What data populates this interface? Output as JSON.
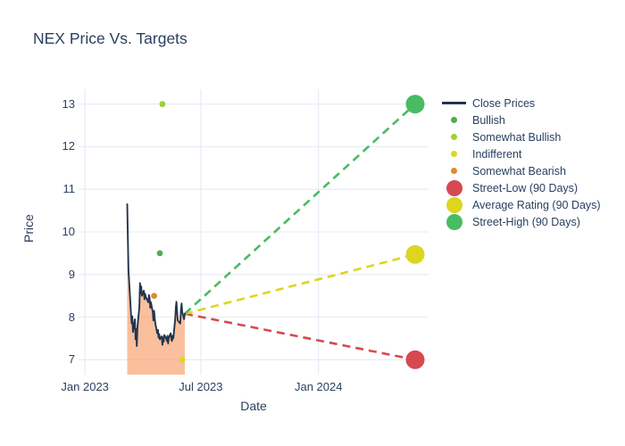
{
  "colors": {
    "text": "#2a3f5f",
    "grid": "#e9edf5",
    "close_line": "#24354d",
    "fill": "rgba(247,149,92,0.6)",
    "bullish": "#4caf50",
    "somewhat_bullish": "#a2cd3a",
    "indifferent": "#ddd621",
    "somewhat_bearish": "#e08a2e",
    "street_low": "#d6494f",
    "average": "#ddd61f",
    "street_high": "#49bb63"
  },
  "chart_data": {
    "type": "line",
    "title": "NEX Price Vs. Targets",
    "xlabel": "Date",
    "ylabel": "Price",
    "grid": true,
    "legend_position": "right",
    "x_range": [
      "2022-12-22",
      "2024-06-21"
    ],
    "y_range": [
      6.65,
      13.35
    ],
    "x_ticks": [
      {
        "label": "Jan 2023",
        "date": "2023-01-01"
      },
      {
        "label": "Jul 2023",
        "date": "2023-07-01"
      },
      {
        "label": "Jan 2024",
        "date": "2024-01-01"
      }
    ],
    "y_ticks": [
      7,
      8,
      9,
      10,
      11,
      12,
      13
    ],
    "series": {
      "close_prices": {
        "name": "Close Prices",
        "dates": [
          "2023-03-08",
          "2023-03-09",
          "2023-03-10",
          "2023-03-13",
          "2023-03-14",
          "2023-03-15",
          "2023-03-16",
          "2023-03-17",
          "2023-03-20",
          "2023-03-21",
          "2023-03-22",
          "2023-03-23",
          "2023-03-24",
          "2023-03-27",
          "2023-03-28",
          "2023-03-29",
          "2023-03-30",
          "2023-03-31",
          "2023-04-03",
          "2023-04-04",
          "2023-04-05",
          "2023-04-06",
          "2023-04-10",
          "2023-04-11",
          "2023-04-12",
          "2023-04-13",
          "2023-04-14",
          "2023-04-17",
          "2023-04-18",
          "2023-04-19",
          "2023-04-20",
          "2023-04-21",
          "2023-04-24",
          "2023-04-25",
          "2023-04-26",
          "2023-04-27",
          "2023-04-28",
          "2023-05-01",
          "2023-05-02",
          "2023-05-03",
          "2023-05-04",
          "2023-05-05",
          "2023-05-08",
          "2023-05-09",
          "2023-05-10",
          "2023-05-11",
          "2023-05-12",
          "2023-05-15",
          "2023-05-16",
          "2023-05-17",
          "2023-05-18",
          "2023-05-19",
          "2023-05-22",
          "2023-05-23",
          "2023-05-24",
          "2023-05-25",
          "2023-05-26",
          "2023-05-30",
          "2023-05-31",
          "2023-06-01",
          "2023-06-02",
          "2023-06-05",
          "2023-06-06"
        ],
        "prices": [
          10.65,
          9.85,
          9.1,
          8.35,
          8.05,
          7.85,
          8.02,
          7.65,
          7.95,
          7.48,
          7.72,
          7.32,
          7.75,
          8.25,
          8.8,
          8.55,
          8.72,
          8.5,
          8.62,
          8.42,
          8.55,
          8.48,
          8.35,
          8.52,
          8.46,
          8.22,
          8.35,
          8.12,
          7.92,
          8.15,
          7.98,
          7.85,
          7.62,
          7.7,
          7.52,
          7.6,
          7.48,
          7.55,
          7.35,
          7.52,
          7.42,
          7.58,
          7.5,
          7.44,
          7.56,
          7.38,
          7.52,
          7.62,
          7.48,
          7.44,
          7.56,
          7.5,
          7.95,
          8.22,
          8.36,
          8.1,
          7.92,
          7.85,
          8.18,
          8.32,
          8.12,
          7.95,
          8.08
        ]
      },
      "ratings": [
        {
          "name": "Bullish",
          "date": "2023-04-28",
          "price": 9.5,
          "color_key": "bullish"
        },
        {
          "name": "Somewhat Bullish",
          "date": "2023-05-02",
          "price": 13.0,
          "color_key": "somewhat_bullish"
        },
        {
          "name": "Indifferent",
          "date": "2023-06-02",
          "price": 7.0,
          "color_key": "indifferent"
        },
        {
          "name": "Somewhat Bearish",
          "date": "2023-04-19",
          "price": 8.5,
          "color_key": "somewhat_bearish"
        }
      ],
      "targets": [
        {
          "name": "Street-Low (90 Days)",
          "date": "2024-05-31",
          "price": 7.0,
          "color_key": "street_low"
        },
        {
          "name": "Average Rating (90 Days)",
          "date": "2024-05-31",
          "price": 9.47,
          "color_key": "average"
        },
        {
          "name": "Street-High (90 Days)",
          "date": "2024-05-31",
          "price": 13.0,
          "color_key": "street_high"
        }
      ]
    },
    "legend": [
      {
        "label": "Close Prices",
        "marker": "line",
        "color_key": "close_line"
      },
      {
        "label": "Bullish",
        "marker": "dot",
        "color_key": "bullish"
      },
      {
        "label": "Somewhat Bullish",
        "marker": "dot",
        "color_key": "somewhat_bullish"
      },
      {
        "label": "Indifferent",
        "marker": "dot",
        "color_key": "indifferent"
      },
      {
        "label": "Somewhat Bearish",
        "marker": "dot",
        "color_key": "somewhat_bearish"
      },
      {
        "label": "Street-Low (90 Days)",
        "marker": "bigdot",
        "color_key": "street_low"
      },
      {
        "label": "Average Rating (90 Days)",
        "marker": "bigdot",
        "color_key": "average"
      },
      {
        "label": "Street-High (90 Days)",
        "marker": "bigdot",
        "color_key": "street_high"
      }
    ]
  }
}
